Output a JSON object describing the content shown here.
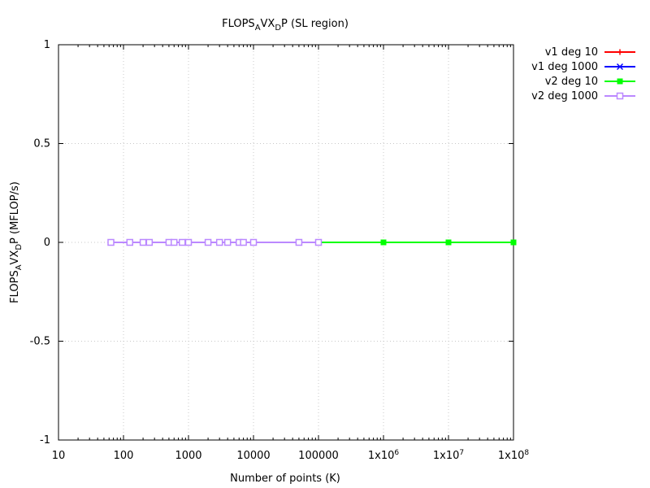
{
  "chart_data": {
    "type": "line",
    "title": {
      "main": "FLOPS",
      "sub1": "A",
      "mid": "VX",
      "sub2": "D",
      "rest": "P (SL region)"
    },
    "xlabel": "Number of points (K)",
    "ylabel": {
      "main": "FLOPS",
      "sub1": "A",
      "mid": "VX",
      "sub2": "D",
      "rest": "P (MFLOP/s)"
    },
    "x_scale": "log",
    "xlim": [
      10,
      100000000
    ],
    "ylim": [
      -1,
      1
    ],
    "grid": true,
    "legend_position": "top-right outside",
    "x_ticks": [
      {
        "value": 10,
        "label": "10"
      },
      {
        "value": 100,
        "label": "100"
      },
      {
        "value": 1000,
        "label": "1000"
      },
      {
        "value": 10000,
        "label": "10000"
      },
      {
        "value": 100000,
        "label": "100000"
      },
      {
        "value": 1000000,
        "label": "1x10",
        "exp": "6"
      },
      {
        "value": 10000000,
        "label": "1x10",
        "exp": "7"
      },
      {
        "value": 100000000,
        "label": "1x10",
        "exp": "8"
      }
    ],
    "y_ticks": [
      {
        "value": 1,
        "label": "1"
      },
      {
        "value": 0.5,
        "label": "0.5"
      },
      {
        "value": 0,
        "label": "0"
      },
      {
        "value": -0.5,
        "label": "-0.5"
      },
      {
        "value": -1,
        "label": "-1"
      }
    ],
    "series": [
      {
        "name": "v1 deg 10",
        "color": "#ff0000",
        "marker": "plus",
        "x": [
          64,
          125,
          200,
          250,
          500,
          600,
          800,
          1000,
          2000,
          3000,
          4000,
          6000,
          7000,
          10000,
          50000,
          100000
        ],
        "y": [
          0,
          0,
          0,
          0,
          0,
          0,
          0,
          0,
          0,
          0,
          0,
          0,
          0,
          0,
          0,
          0
        ]
      },
      {
        "name": "v1 deg 1000",
        "color": "#0000ff",
        "marker": "cross",
        "x": [
          64,
          125,
          200,
          250,
          500,
          600,
          800,
          1000,
          2000,
          3000,
          4000,
          6000,
          7000,
          10000,
          50000,
          100000
        ],
        "y": [
          0,
          0,
          0,
          0,
          0,
          0,
          0,
          0,
          0,
          0,
          0,
          0,
          0,
          0,
          0,
          0
        ]
      },
      {
        "name": "v2 deg 10",
        "color": "#00ff00",
        "marker": "filled-square",
        "x": [
          64,
          125,
          200,
          250,
          500,
          600,
          800,
          1000,
          2000,
          3000,
          4000,
          6000,
          7000,
          10000,
          50000,
          100000,
          1000000,
          10000000,
          100000000
        ],
        "y": [
          0,
          0,
          0,
          0,
          0,
          0,
          0,
          0,
          0,
          0,
          0,
          0,
          0,
          0,
          0,
          0,
          0,
          0,
          0
        ]
      },
      {
        "name": "v2 deg 1000",
        "color": "#bb88ff",
        "marker": "open-square",
        "x": [
          64,
          125,
          200,
          250,
          500,
          600,
          800,
          1000,
          2000,
          3000,
          4000,
          6000,
          7000,
          10000,
          50000,
          100000
        ],
        "y": [
          0,
          0,
          0,
          0,
          0,
          0,
          0,
          0,
          0,
          0,
          0,
          0,
          0,
          0,
          0,
          0
        ]
      }
    ]
  }
}
